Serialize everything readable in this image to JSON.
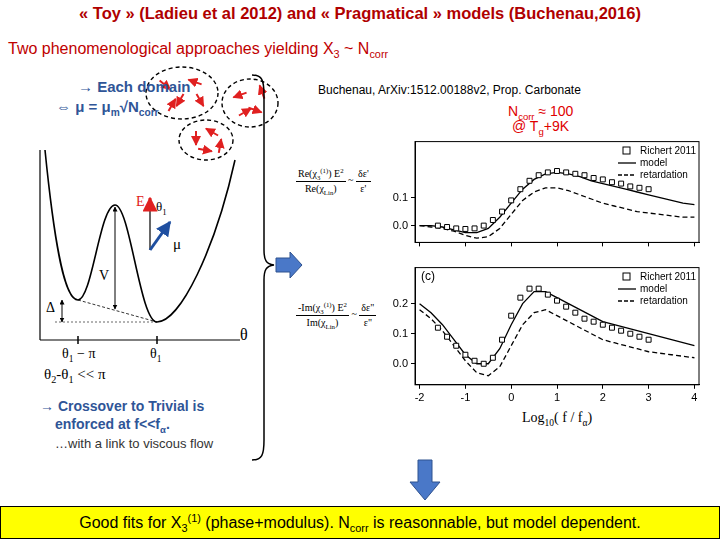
{
  "slide": {
    "title": "« Toy » (Ladieu et al 2012) and « Pragmatical » models (Buchenau,2016)",
    "subtitle": [
      "Two phenomenological approaches yielding X",
      {
        "sub": "3"
      },
      " ~ N",
      {
        "sub": "corr"
      }
    ],
    "left": {
      "each_domain": "→ Each domain",
      "relation": [
        "⇔ μ = μ",
        {
          "sub": "m"
        },
        "√N",
        {
          "sub": "corr"
        }
      ],
      "potential_labels": {
        "barrier": "V",
        "asymmetry": "Δ",
        "left_min": [
          "θ",
          {
            "sub": "1"
          },
          " − π"
        ],
        "right_min": [
          "θ",
          {
            "sub": "1"
          }
        ],
        "axis": "θ",
        "field": "E",
        "field_angle": [
          "θ",
          {
            "sub": "1"
          }
        ],
        "dipole": "μ"
      },
      "condition": [
        "θ",
        {
          "sub": "2"
        },
        "-θ",
        {
          "sub": "1"
        },
        " << π"
      ],
      "crossover": [
        [
          "→ Crossover to Trivial is"
        ],
        [
          "enforced at f<<f",
          {
            "sub": "α"
          },
          "."
        ],
        [
          "…with a link to viscous flow"
        ]
      ]
    },
    "reference": "Buchenau, ArXiv:1512.00188v2, Prop. Carbonate",
    "annotation": [
      [
        "N",
        {
          "sub": "corr"
        },
        " ≈ 100"
      ],
      [
        "@ T",
        {
          "sub": "g"
        },
        "+9K"
      ]
    ],
    "footer": [
      "Good fits for X",
      {
        "sub": "3"
      },
      {
        "sup": "(1)"
      },
      " (phase+modulus). N",
      {
        "sub": "corr"
      },
      " is reasonnable, but model dependent."
    ]
  },
  "chart_data": [
    {
      "type": "line",
      "y_label": {
        "numerator": [
          "Re(χ",
          {
            "sub": "3"
          },
          {
            "sup": "(1)"
          },
          ") E",
          {
            "sup": "2"
          }
        ],
        "denominator": [
          "Re(χ",
          {
            "sub": "Lin"
          },
          ")"
        ],
        "relation": "~",
        "rhs_numerator": "δε'",
        "rhs_denominator": "ε'"
      },
      "xlim": [
        -2.1,
        4.1
      ],
      "xticks": [
        -2,
        -1,
        0,
        1,
        2,
        3,
        4
      ],
      "ylim": [
        -0.06,
        0.3
      ],
      "yticks": [
        {
          "value": 0,
          "label": "0.0"
        },
        {
          "value": 0.1,
          "label": "0.1"
        }
      ],
      "tick_labels": "y",
      "grid": false,
      "legend": "upper right",
      "series": [
        {
          "name": "Richert 2011",
          "type": "scatter",
          "marker": "square",
          "color": "#000000",
          "x": [
            -1.6,
            -1.4,
            -1.2,
            -1.0,
            -0.8,
            -0.6,
            -0.4,
            -0.2,
            0,
            0.2,
            0.4,
            0.6,
            0.8,
            1.0,
            1.2,
            1.4,
            1.6,
            1.8,
            2.0,
            2.2,
            2.4,
            2.6,
            2.8,
            3.0
          ],
          "values": [
            0.0,
            -0.005,
            -0.01,
            -0.012,
            -0.01,
            0.0,
            0.02,
            0.05,
            0.09,
            0.13,
            0.16,
            0.18,
            0.19,
            0.195,
            0.19,
            0.185,
            0.18,
            0.17,
            0.165,
            0.155,
            0.15,
            0.14,
            0.135,
            0.13
          ]
        },
        {
          "name": "model",
          "type": "line",
          "line_style": "solid",
          "color": "#000000",
          "x": [
            -2,
            -1.75,
            -1.5,
            -1.25,
            -1,
            -0.75,
            -0.5,
            -0.25,
            0,
            0.25,
            0.5,
            0.75,
            1,
            1.25,
            1.5,
            1.75,
            2,
            2.25,
            2.5,
            2.75,
            3,
            3.25,
            3.5,
            3.75,
            4
          ],
          "values": [
            0.0,
            0.0,
            -0.005,
            -0.015,
            -0.025,
            -0.025,
            -0.01,
            0.03,
            0.08,
            0.13,
            0.165,
            0.185,
            0.19,
            0.185,
            0.175,
            0.16,
            0.15,
            0.14,
            0.13,
            0.12,
            0.11,
            0.1,
            0.09,
            0.08,
            0.075
          ]
        },
        {
          "name": "retardation",
          "type": "line",
          "line_style": "dashed",
          "color": "#000000",
          "x": [
            -2,
            -1.75,
            -1.5,
            -1.25,
            -1,
            -0.75,
            -0.5,
            -0.25,
            0,
            0.25,
            0.5,
            0.75,
            1,
            1.25,
            1.5,
            1.75,
            2,
            2.25,
            2.5,
            2.75,
            3,
            3.25,
            3.5,
            3.75,
            4
          ],
          "values": [
            0.0,
            -0.005,
            -0.01,
            -0.02,
            -0.035,
            -0.045,
            -0.04,
            -0.01,
            0.04,
            0.09,
            0.12,
            0.135,
            0.135,
            0.125,
            0.11,
            0.095,
            0.08,
            0.07,
            0.06,
            0.05,
            0.045,
            0.04,
            0.035,
            0.03,
            0.03
          ]
        }
      ]
    },
    {
      "type": "line",
      "panel_label": "(c)",
      "x_label": [
        "Log",
        {
          "sub": "10"
        },
        "( f / f",
        {
          "sub": "α"
        },
        ")"
      ],
      "y_label": {
        "numerator": [
          "-Im(χ",
          {
            "sub": "3"
          },
          {
            "sup": "(1)"
          },
          ") E",
          {
            "sup": "2"
          }
        ],
        "denominator": [
          "Im(χ",
          {
            "sub": "Lin"
          },
          ")"
        ],
        "relation": "~",
        "rhs_numerator": "δε\"",
        "rhs_denominator": "ε\""
      },
      "xlim": [
        -2.1,
        4.1
      ],
      "xticks": [
        -2,
        -1,
        0,
        1,
        2,
        3,
        4
      ],
      "ylim": [
        -0.07,
        0.32
      ],
      "yticks": [
        {
          "value": 0,
          "label": "0.0"
        },
        {
          "value": 0.1,
          "label": "0.1"
        },
        {
          "value": 0.2,
          "label": "0.2"
        }
      ],
      "grid": false,
      "legend": "upper right",
      "series": [
        {
          "name": "Richert 2011",
          "type": "scatter",
          "marker": "square",
          "color": "#000000",
          "x": [
            -1.6,
            -1.4,
            -1.2,
            -1.0,
            -0.8,
            -0.6,
            -0.4,
            -0.2,
            0,
            0.2,
            0.4,
            0.6,
            0.8,
            1.0,
            1.2,
            1.4,
            1.6,
            1.8,
            2.0,
            2.2,
            2.4,
            2.6,
            2.8,
            3.0
          ],
          "values": [
            0.12,
            0.09,
            0.06,
            0.03,
            0.01,
            0.0,
            0.02,
            0.08,
            0.16,
            0.22,
            0.25,
            0.25,
            0.23,
            0.21,
            0.19,
            0.17,
            0.15,
            0.14,
            0.13,
            0.12,
            0.11,
            0.1,
            0.09,
            0.08
          ]
        },
        {
          "name": "model",
          "type": "line",
          "line_style": "solid",
          "color": "#000000",
          "x": [
            -2,
            -1.75,
            -1.5,
            -1.25,
            -1,
            -0.75,
            -0.5,
            -0.25,
            0,
            0.25,
            0.5,
            0.75,
            1,
            1.25,
            1.5,
            1.75,
            2,
            2.25,
            2.5,
            2.75,
            3,
            3.25,
            3.5,
            3.75,
            4
          ],
          "values": [
            0.2,
            0.17,
            0.13,
            0.08,
            0.03,
            0.0,
            0.0,
            0.05,
            0.13,
            0.2,
            0.24,
            0.24,
            0.22,
            0.2,
            0.18,
            0.16,
            0.14,
            0.13,
            0.12,
            0.11,
            0.1,
            0.09,
            0.08,
            0.07,
            0.06
          ]
        },
        {
          "name": "retardation",
          "type": "line",
          "line_style": "dashed",
          "color": "#000000",
          "x": [
            -2,
            -1.75,
            -1.5,
            -1.25,
            -1,
            -0.75,
            -0.5,
            -0.25,
            0,
            0.25,
            0.5,
            0.75,
            1,
            1.25,
            1.5,
            1.75,
            2,
            2.25,
            2.5,
            2.75,
            3,
            3.25,
            3.5,
            3.75,
            4
          ],
          "values": [
            0.18,
            0.15,
            0.11,
            0.06,
            0.01,
            -0.03,
            -0.04,
            -0.01,
            0.06,
            0.13,
            0.17,
            0.18,
            0.16,
            0.14,
            0.12,
            0.1,
            0.08,
            0.07,
            0.06,
            0.05,
            0.04,
            0.035,
            0.03,
            0.025,
            0.02
          ]
        }
      ]
    }
  ]
}
